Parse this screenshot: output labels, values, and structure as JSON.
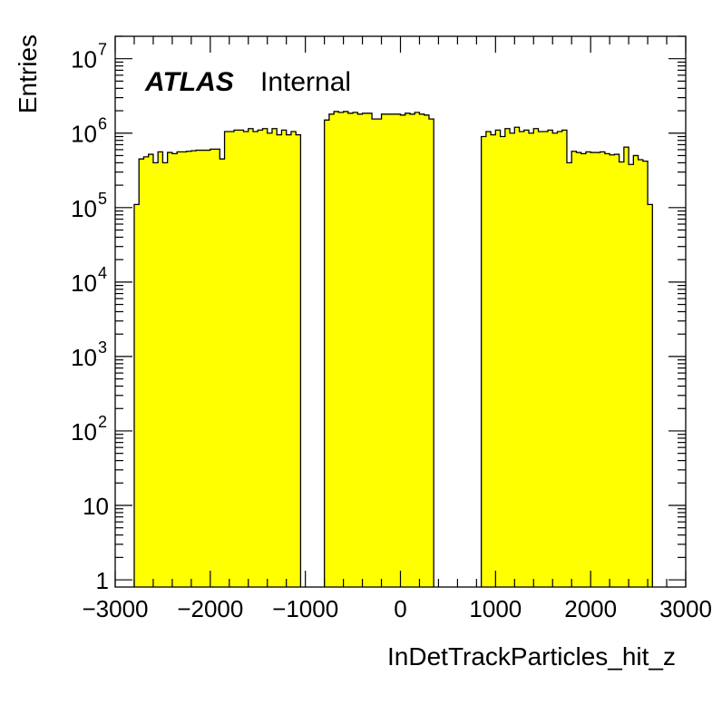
{
  "chart_data": {
    "type": "bar",
    "histogram": true,
    "xlabel": "InDetTrackParticles_hit_z",
    "ylabel": "Entries",
    "label": {
      "bold": "ATLAS",
      "normal": "Internal"
    },
    "xlim": [
      -3000,
      3000
    ],
    "ylim": [
      0.8,
      20000000
    ],
    "log_y": true,
    "grid": false,
    "fill_color": "#ffff00",
    "line_color": "#000000",
    "x_ticks": [
      {
        "value": -3000,
        "label": "−3000"
      },
      {
        "value": -2000,
        "label": "−2000"
      },
      {
        "value": -1000,
        "label": "−1000"
      },
      {
        "value": 0,
        "label": "0"
      },
      {
        "value": 1000,
        "label": "1000"
      },
      {
        "value": 2000,
        "label": "2000"
      },
      {
        "value": 3000,
        "label": "3000"
      }
    ],
    "y_ticks": [
      {
        "value": 1,
        "base": "1",
        "exp": ""
      },
      {
        "value": 10,
        "base": "10",
        "exp": ""
      },
      {
        "value": 100,
        "base": "10",
        "exp": "2"
      },
      {
        "value": 1000,
        "base": "10",
        "exp": "3"
      },
      {
        "value": 10000,
        "base": "10",
        "exp": "4"
      },
      {
        "value": 100000,
        "base": "10",
        "exp": "5"
      },
      {
        "value": 1000000,
        "base": "10",
        "exp": "6"
      },
      {
        "value": 10000000,
        "base": "10",
        "exp": "7"
      }
    ],
    "bin_width": 50,
    "bin_start": [
      -2800,
      -800,
      850
    ],
    "values": [
      [
        110000,
        450000,
        480000,
        520000,
        400000,
        560000,
        400000,
        550000,
        530000,
        560000,
        560000,
        570000,
        580000,
        590000,
        590000,
        590000,
        610000,
        610000,
        450000,
        1050000,
        1050000,
        1100000,
        1100000,
        1050000,
        1150000,
        1050000,
        1100000,
        1150000,
        1000000,
        1150000,
        950000,
        1100000,
        950000,
        1050000,
        950000
      ],
      [
        1500000,
        1800000,
        1950000,
        1900000,
        1950000,
        1850000,
        1900000,
        1800000,
        1850000,
        1850000,
        1550000,
        1550000,
        1800000,
        1800000,
        1800000,
        1800000,
        1750000,
        1850000,
        1800000,
        1900000,
        1800000,
        1750000,
        1550000
      ],
      [
        900000,
        1050000,
        950000,
        1100000,
        900000,
        1150000,
        1000000,
        1200000,
        1050000,
        1100000,
        1000000,
        1150000,
        1050000,
        1050000,
        1100000,
        1000000,
        1050000,
        1100000,
        400000,
        570000,
        550000,
        530000,
        560000,
        550000,
        550000,
        560000,
        530000,
        510000,
        520000,
        410000,
        650000,
        380000,
        500000,
        440000,
        420000,
        110000
      ]
    ]
  }
}
